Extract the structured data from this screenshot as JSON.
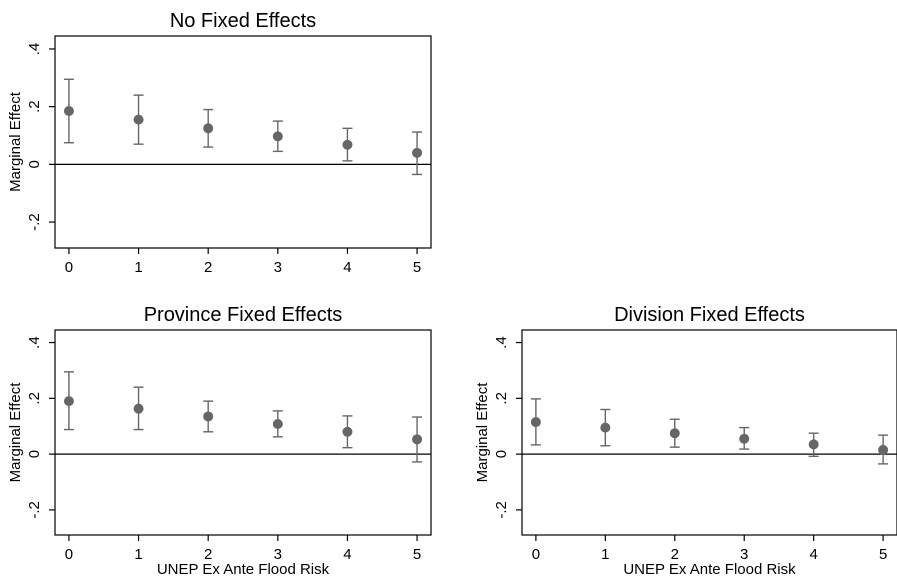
{
  "figure": {
    "background": "#ffffff",
    "marker_color": "#666666"
  },
  "chart_data": [
    {
      "type": "scatter",
      "title": "No Fixed Effects",
      "ylabel": "Marginal Effect",
      "xlabel": "",
      "x": [
        0,
        1,
        2,
        3,
        4,
        5
      ],
      "y": [
        0.185,
        0.155,
        0.125,
        0.097,
        0.068,
        0.04
      ],
      "ci_low": [
        0.075,
        0.07,
        0.06,
        0.045,
        0.012,
        -0.035
      ],
      "ci_high": [
        0.295,
        0.24,
        0.19,
        0.15,
        0.125,
        0.112
      ],
      "xticks": [
        "0",
        "1",
        "2",
        "3",
        "4",
        "5"
      ],
      "yticks": [
        "-.2",
        "0",
        ".2",
        ".4"
      ],
      "ylim": [
        -0.29,
        0.445
      ],
      "xlim": [
        -0.2,
        5.2
      ],
      "grid": false,
      "zero_line": true
    },
    {
      "type": "scatter",
      "title": "Province Fixed Effects",
      "ylabel": "Marginal Effect",
      "xlabel": "UNEP Ex Ante Flood Risk",
      "x": [
        0,
        1,
        2,
        3,
        4,
        5
      ],
      "y": [
        0.19,
        0.163,
        0.135,
        0.108,
        0.08,
        0.053
      ],
      "ci_low": [
        0.088,
        0.088,
        0.08,
        0.062,
        0.023,
        -0.028
      ],
      "ci_high": [
        0.295,
        0.24,
        0.19,
        0.155,
        0.137,
        0.133
      ],
      "xticks": [
        "0",
        "1",
        "2",
        "3",
        "4",
        "5"
      ],
      "yticks": [
        "-.2",
        "0",
        ".2",
        ".4"
      ],
      "ylim": [
        -0.29,
        0.445
      ],
      "xlim": [
        -0.2,
        5.2
      ],
      "grid": false,
      "zero_line": true
    },
    {
      "type": "scatter",
      "title": "Division Fixed Effects",
      "ylabel": "Marginal Effect",
      "xlabel": "UNEP Ex Ante Flood Risk",
      "x": [
        0,
        1,
        2,
        3,
        4,
        5
      ],
      "y": [
        0.115,
        0.095,
        0.075,
        0.055,
        0.035,
        0.015
      ],
      "ci_low": [
        0.033,
        0.03,
        0.025,
        0.018,
        -0.008,
        -0.035
      ],
      "ci_high": [
        0.198,
        0.16,
        0.125,
        0.095,
        0.075,
        0.068
      ],
      "xticks": [
        "0",
        "1",
        "2",
        "3",
        "4",
        "5"
      ],
      "yticks": [
        "-.2",
        "0",
        ".2",
        ".4"
      ],
      "ylim": [
        -0.29,
        0.445
      ],
      "xlim": [
        -0.2,
        5.2
      ],
      "grid": false,
      "zero_line": true
    }
  ]
}
